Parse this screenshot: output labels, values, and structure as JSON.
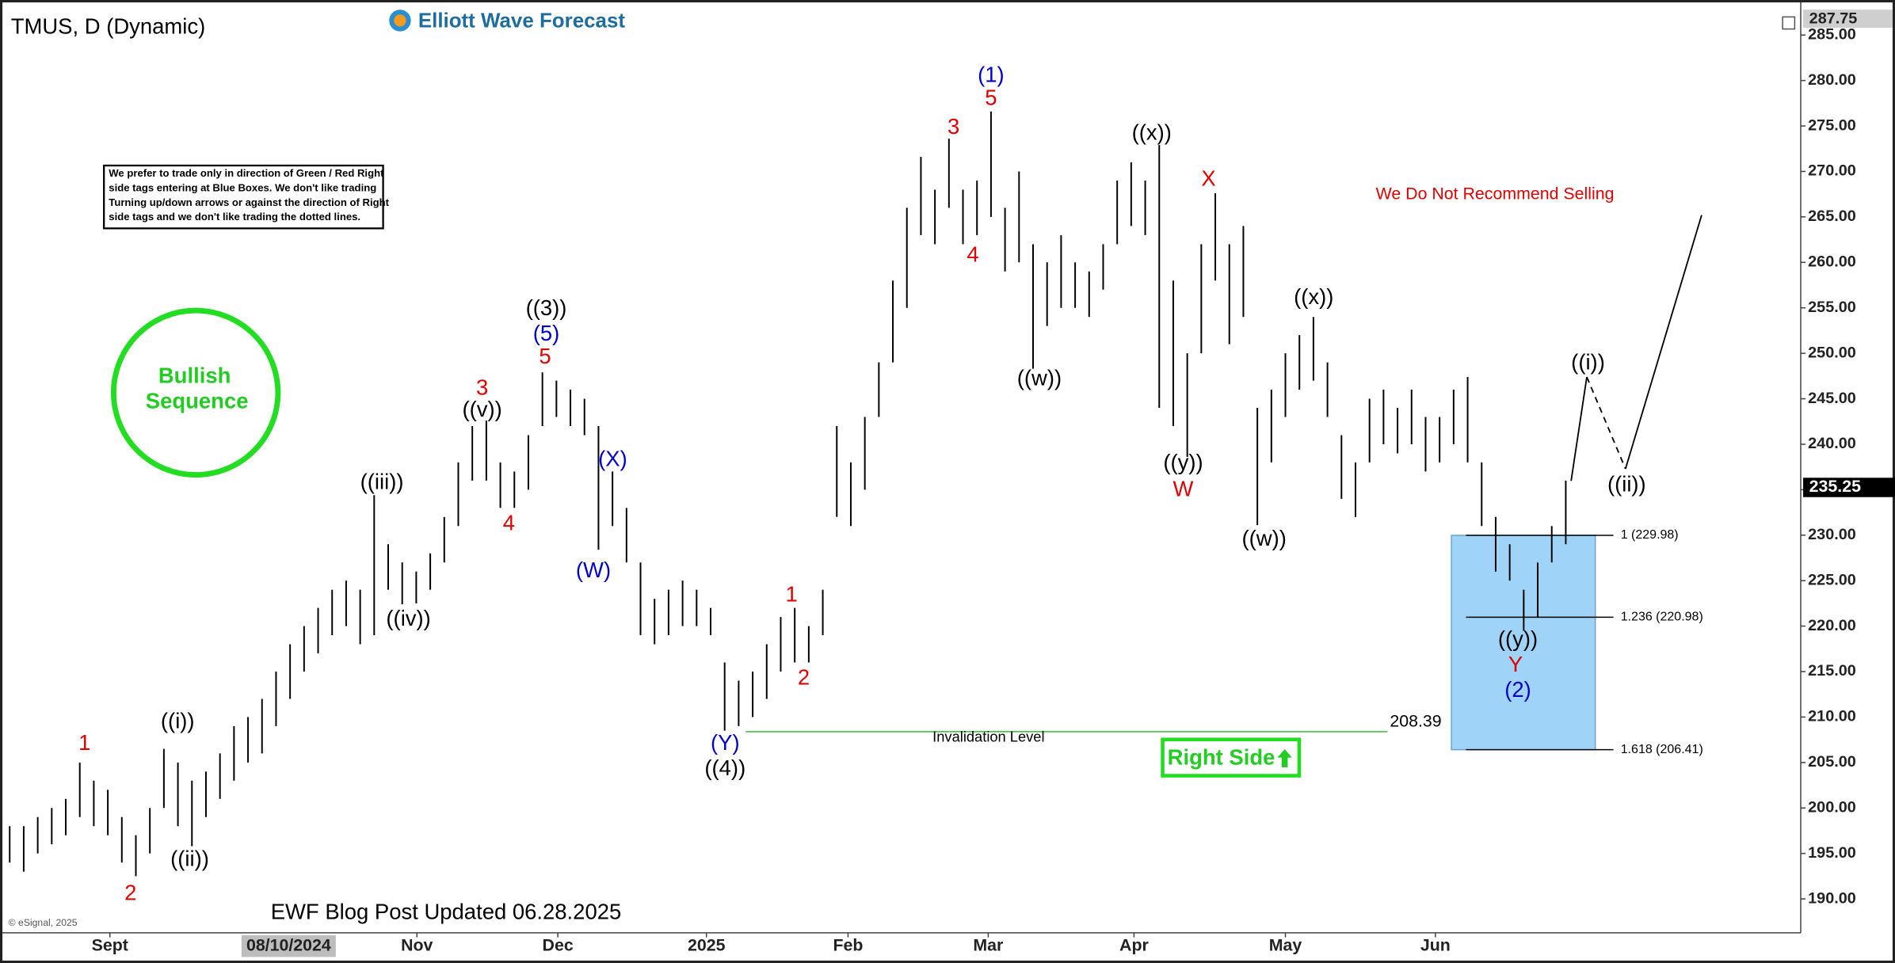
{
  "chart_data": {
    "type": "ohlc",
    "title": "TMUS, D (Dynamic)",
    "brand": "Elliott Wave Forecast",
    "bar_color": "#000000",
    "x": [
      0,
      1,
      2,
      3,
      4,
      5,
      6,
      7,
      8,
      9,
      10,
      11,
      12,
      13,
      14,
      15,
      16,
      17,
      18,
      19,
      20,
      21,
      22,
      23,
      24,
      25,
      26,
      27,
      28,
      29,
      30,
      31,
      32,
      33,
      34,
      35,
      36,
      37,
      38,
      39,
      40,
      41,
      42,
      43,
      44,
      45,
      46,
      47,
      48,
      49,
      50,
      51,
      52,
      53,
      54,
      55,
      56,
      57,
      58,
      59,
      60,
      61,
      62,
      63,
      64,
      65,
      66,
      67,
      68,
      69,
      70,
      71,
      72,
      73,
      74,
      75,
      76,
      77,
      78,
      79,
      80,
      81,
      82,
      83,
      84,
      85,
      86,
      87,
      88,
      89,
      90,
      91,
      92,
      93,
      94,
      95,
      96,
      97,
      98,
      99,
      100,
      101,
      102,
      103,
      104,
      105,
      106,
      107,
      108,
      109,
      110,
      111
    ],
    "high": [
      198,
      198,
      199,
      200,
      201,
      205,
      203,
      202,
      199,
      197,
      200,
      206.5,
      205,
      203,
      204,
      206,
      209,
      210,
      212,
      215,
      218,
      220,
      222,
      224,
      225,
      224,
      234.4,
      229,
      227,
      226,
      228,
      232,
      238,
      242,
      242.6,
      238,
      237,
      241,
      247.9,
      247,
      246,
      245,
      242,
      237,
      233,
      227,
      223,
      224,
      225,
      224,
      222,
      216,
      214,
      215,
      218,
      221,
      222,
      220,
      224,
      242,
      238,
      243,
      249,
      258,
      266,
      271.6,
      268,
      273.6,
      268,
      269,
      276.6,
      266,
      270,
      262,
      260,
      263,
      260,
      259,
      262,
      269,
      271,
      269,
      272.9,
      258,
      250,
      262,
      267.6,
      262,
      264,
      244,
      246,
      250,
      252,
      254,
      249,
      241,
      238,
      245,
      246,
      244,
      246,
      243,
      243,
      246,
      247.4,
      238,
      232,
      229,
      224,
      227,
      231,
      236
    ],
    "low": [
      194,
      193,
      195,
      196,
      197,
      199,
      198,
      197,
      194,
      192.5,
      195,
      200,
      198,
      195.8,
      199,
      201,
      203,
      205,
      206,
      209,
      212,
      215,
      217,
      219,
      220,
      218,
      219,
      224,
      222.4,
      222.5,
      224,
      227,
      231,
      236,
      236,
      233,
      233,
      235,
      242,
      243,
      242,
      241,
      228.4,
      231,
      227,
      219,
      218,
      219,
      220,
      220,
      219,
      208.5,
      209,
      210,
      212,
      215,
      216,
      216,
      219,
      232,
      231,
      235,
      243,
      249,
      255,
      263,
      262,
      266,
      262,
      263,
      265,
      259,
      260,
      248.3,
      253,
      255,
      255,
      254,
      257,
      262,
      264,
      263,
      244,
      242,
      238.6,
      250,
      258,
      251,
      254,
      231.1,
      238,
      243,
      246,
      247,
      243,
      234,
      232,
      238,
      240,
      239,
      240,
      237,
      238,
      240,
      238,
      231,
      226,
      225,
      219.5,
      221,
      227,
      229
    ],
    "xlim": [
      -0.26,
      127.76
    ],
    "xticks": [
      {
        "value": 7.15,
        "label": "Sept"
      },
      {
        "value": 29.05,
        "label": "Nov"
      },
      {
        "value": 39.1,
        "label": "Dec"
      },
      {
        "value": 49.7,
        "label": "2025"
      },
      {
        "value": 59.8,
        "label": "Feb"
      },
      {
        "value": 69.8,
        "label": "Mar"
      },
      {
        "value": 80.2,
        "label": "Apr"
      },
      {
        "value": 91,
        "label": "May"
      },
      {
        "value": 101.7,
        "label": "Jun"
      }
    ],
    "cursor": {
      "value": 19.9,
      "label": "08/10/2024"
    },
    "ylim": [
      186.3,
      287.75
    ],
    "yticks": [
      {
        "value": 190,
        "label": "190.00"
      },
      {
        "value": 195,
        "label": "195.00"
      },
      {
        "value": 200,
        "label": "200.00"
      },
      {
        "value": 205,
        "label": "205.00"
      },
      {
        "value": 210,
        "label": "210.00"
      },
      {
        "value": 215,
        "label": "215.00"
      },
      {
        "value": 220,
        "label": "220.00"
      },
      {
        "value": 225,
        "label": "225.00"
      },
      {
        "value": 230,
        "label": "230.00"
      },
      {
        "value": 235,
        "label": "235.00"
      },
      {
        "value": 240,
        "label": "240.00"
      },
      {
        "value": 245,
        "label": "245.00"
      },
      {
        "value": 250,
        "label": "250.00"
      },
      {
        "value": 255,
        "label": "255.00"
      },
      {
        "value": 260,
        "label": "260.00"
      },
      {
        "value": 265,
        "label": "265.00"
      },
      {
        "value": 270,
        "label": "270.00"
      },
      {
        "value": 275,
        "label": "275.00"
      },
      {
        "value": 280,
        "label": "280.00"
      },
      {
        "value": 285,
        "label": "285.00"
      }
    ],
    "last_price": 235.25,
    "invalidation": {
      "value": 208.39,
      "label": "Invalidation Level"
    },
    "fib_levels": [
      {
        "value": 229.98,
        "label": "1 (229.98)"
      },
      {
        "value": 220.98,
        "label": "1.236 (220.98)"
      },
      {
        "value": 206.41,
        "label": "1.618 (206.41)"
      }
    ],
    "wave_labels": [
      {
        "text": "1",
        "color": "#e00000"
      },
      {
        "text": "2",
        "color": "#e00000"
      },
      {
        "text": "((i))",
        "color": "#000000"
      },
      {
        "text": "((ii))",
        "color": "#000000"
      },
      {
        "text": "((iii))",
        "color": "#000000"
      },
      {
        "text": "((iv))",
        "color": "#000000"
      },
      {
        "text": "3",
        "color": "#e00000"
      },
      {
        "text": "((v))",
        "color": "#000000"
      },
      {
        "text": "4",
        "color": "#e00000"
      },
      {
        "text": "((3))",
        "color": "#000000"
      },
      {
        "text": "(5)",
        "color": "#0000cc"
      },
      {
        "text": "5",
        "color": "#e00000"
      },
      {
        "text": "(X)",
        "color": "#0000cc"
      },
      {
        "text": "(W)",
        "color": "#0000cc"
      },
      {
        "text": "(Y)",
        "color": "#0000cc"
      },
      {
        "text": "((4))",
        "color": "#000000"
      },
      {
        "text": "1",
        "color": "#e00000"
      },
      {
        "text": "2",
        "color": "#e00000"
      },
      {
        "text": "3",
        "color": "#e00000"
      },
      {
        "text": "(1)",
        "color": "#0000cc"
      },
      {
        "text": "5",
        "color": "#e00000"
      },
      {
        "text": "4",
        "color": "#e00000"
      },
      {
        "text": "((w))",
        "color": "#000000"
      },
      {
        "text": "((x))",
        "color": "#000000"
      },
      {
        "text": "X",
        "color": "#e00000"
      },
      {
        "text": "((y))",
        "color": "#000000"
      },
      {
        "text": "W",
        "color": "#e00000"
      },
      {
        "text": "((x))",
        "color": "#000000"
      },
      {
        "text": "((w))",
        "color": "#000000"
      },
      {
        "text": "((y))",
        "color": "#000000"
      },
      {
        "text": "Y",
        "color": "#e00000"
      },
      {
        "text": "(2)",
        "color": "#0000cc"
      },
      {
        "text": "((i))",
        "color": "#000000"
      },
      {
        "text": "((ii))",
        "color": "#000000"
      }
    ],
    "note_lines": [
      "We prefer to trade only in direction of Green / Red Right",
      "side tags entering at Blue Boxes. We don't like trading",
      "Turning up/down arrows or against the direction of Right",
      "side tags and we don't like trading the dotted lines."
    ],
    "bullish": [
      "Bullish",
      "Sequence"
    ],
    "recommendation": "We Do Not Recommend Selling",
    "right_side": "Right Side",
    "footer": "EWF Blog Post Updated 06.28.2025",
    "copyright": "© eSignal, 2025"
  }
}
